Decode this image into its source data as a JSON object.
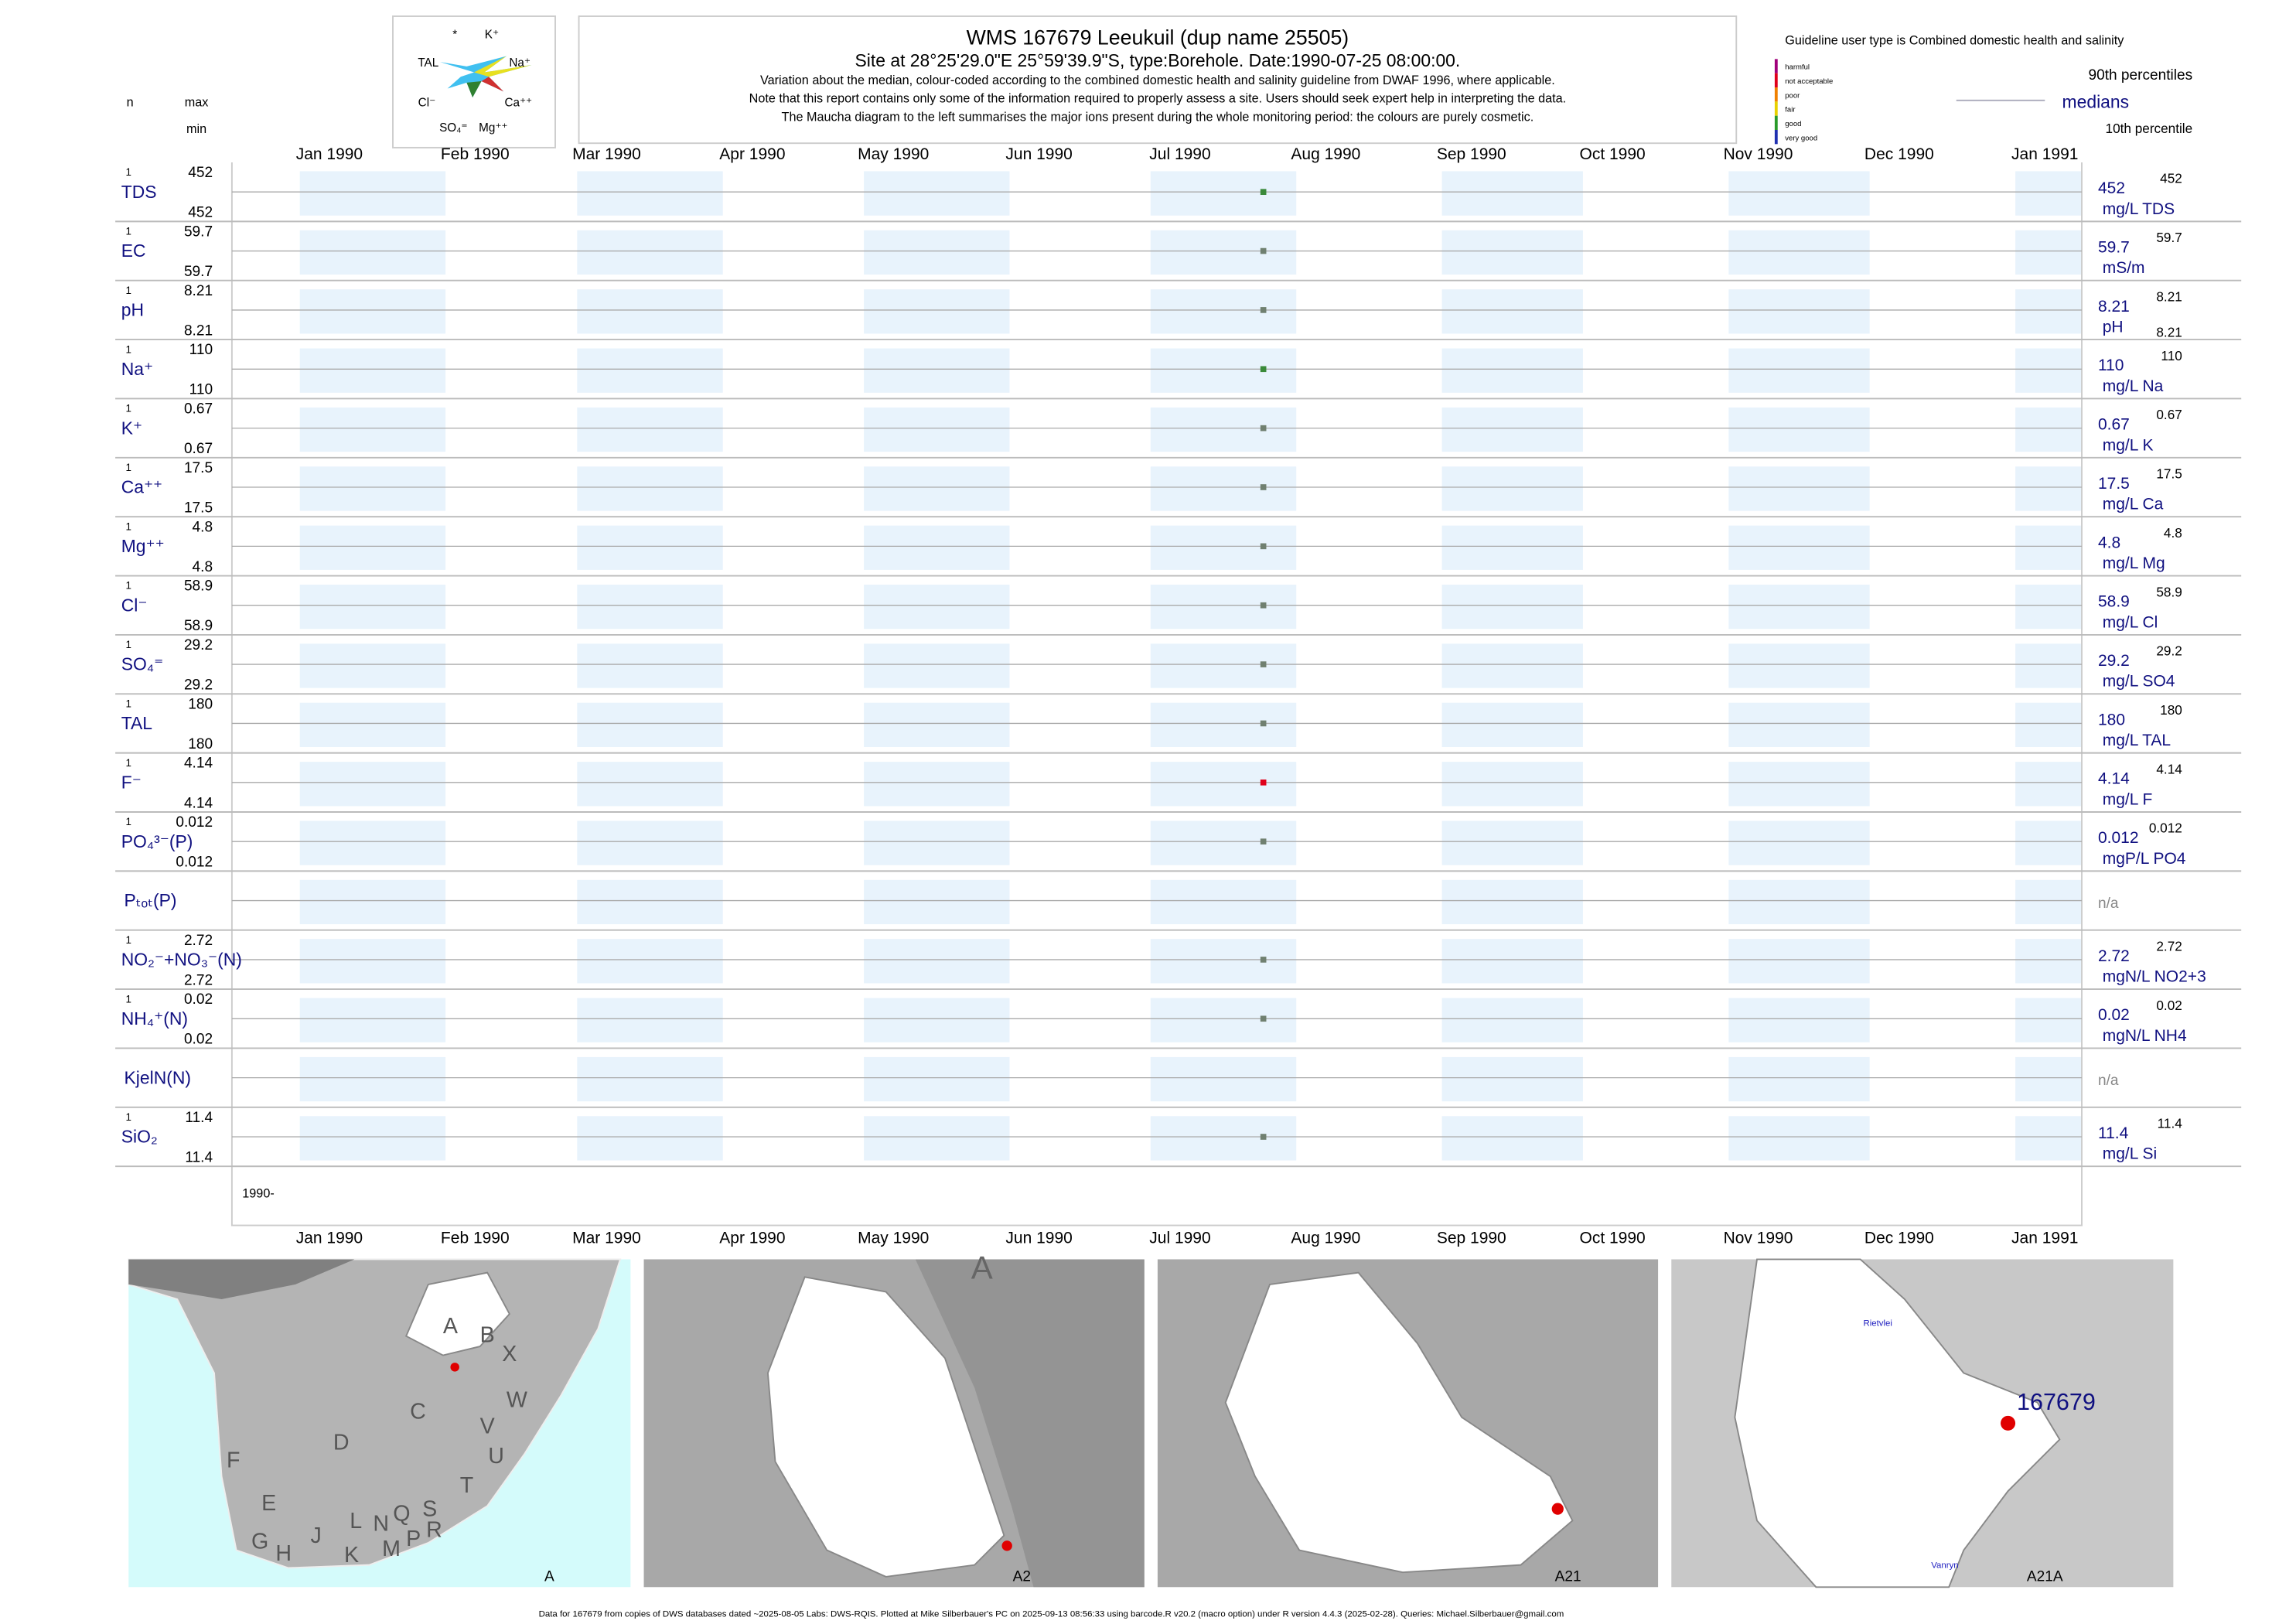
{
  "header": {
    "title": "WMS 167679  Leeukuil (dup name 25505)",
    "subtitle": "Site at 28°25'29.0\"E 25°59'39.9\"S, type:Borehole. Date:1990-07-25 08:00:00.",
    "notes": [
      "Variation about the median,  colour-coded according to the combined domestic health and salinity guideline from DWAF 1996, where applicable.",
      "Note that this report contains only some of the information required to properly assess a site. Users should seek expert help in interpreting the data.",
      "The Maucha diagram to the left summarises the major ions present during the whole monitoring period: the colours are purely cosmetic."
    ]
  },
  "maucha_labels": [
    "*",
    "K⁺",
    "TAL",
    "Na⁺",
    "Cl⁻",
    "Ca⁺⁺",
    "SO₄⁼",
    "Mg⁺⁺"
  ],
  "column_heads": {
    "n": "n",
    "max": "max",
    "min": "min"
  },
  "legend": {
    "title": "Guideline user type is Combined domestic health and salinity",
    "classes": [
      {
        "label": "harmful",
        "color": "#a0007a"
      },
      {
        "label": "not acceptable",
        "color": "#e0001a"
      },
      {
        "label": "poor",
        "color": "#f08000"
      },
      {
        "label": "fair",
        "color": "#e8d000"
      },
      {
        "label": "good",
        "color": "#2a9a2a"
      },
      {
        "label": "very good",
        "color": "#2030b0"
      }
    ],
    "p90": "90th percentiles",
    "medians": "medians",
    "p10": "10th percentile"
  },
  "months": [
    "Jan 1990",
    "Feb 1990",
    "Mar 1990",
    "Apr 1990",
    "May 1990",
    "Jun 1990",
    "Jul 1990",
    "Aug 1990",
    "Sep 1990",
    "Oct 1990",
    "Nov 1990",
    "Dec 1990",
    "Jan 1991"
  ],
  "year_label": "1990-",
  "rows": [
    {
      "label": "TDS",
      "n": 1,
      "max": 452,
      "min": 452,
      "median": 452,
      "unit": "mg/L TDS",
      "p90": 452,
      "color": "#3a8a3a"
    },
    {
      "label": "EC",
      "n": 1,
      "max": 59.7,
      "min": 59.7,
      "median": 59.7,
      "unit": "mS/m",
      "p90": 59.7,
      "color": "#708070"
    },
    {
      "label": "pH",
      "n": 1,
      "max": 8.21,
      "min": 8.21,
      "median": 8.21,
      "unit": "pH",
      "p90": 8.21,
      "p10": 8.21,
      "color": "#708070"
    },
    {
      "label": "Na⁺",
      "n": 1,
      "max": 110,
      "min": 110,
      "median": 110,
      "unit": "mg/L Na",
      "p90": 110,
      "color": "#3a8a3a"
    },
    {
      "label": "K⁺",
      "n": 1,
      "max": 0.67,
      "min": 0.67,
      "median": 0.67,
      "unit": "mg/L K",
      "p90": 0.67,
      "color": "#708070"
    },
    {
      "label": "Ca⁺⁺",
      "n": 1,
      "max": 17.5,
      "min": 17.5,
      "median": 17.5,
      "unit": "mg/L Ca",
      "p90": 17.5,
      "color": "#708070"
    },
    {
      "label": "Mg⁺⁺",
      "n": 1,
      "max": 4.8,
      "min": 4.8,
      "median": 4.8,
      "unit": "mg/L Mg",
      "p90": 4.8,
      "color": "#708070"
    },
    {
      "label": "Cl⁻",
      "n": 1,
      "max": 58.9,
      "min": 58.9,
      "median": 58.9,
      "unit": "mg/L Cl",
      "p90": 58.9,
      "color": "#708070"
    },
    {
      "label": "SO₄⁼",
      "n": 1,
      "max": 29.2,
      "min": 29.2,
      "median": 29.2,
      "unit": "mg/L SO4",
      "p90": 29.2,
      "color": "#708070"
    },
    {
      "label": "TAL",
      "n": 1,
      "max": 180,
      "min": 180,
      "median": 180,
      "unit": "mg/L TAL",
      "p90": 180,
      "color": "#708070"
    },
    {
      "label": "F⁻",
      "n": 1,
      "max": 4.14,
      "min": 4.14,
      "median": 4.14,
      "unit": "mg/L F",
      "p90": 4.14,
      "color": "#e0001a"
    },
    {
      "label": "PO₄³⁻(P)",
      "n": 1,
      "max": 0.012,
      "min": 0.012,
      "median": 0.012,
      "unit": "mgP/L PO4",
      "p90": 0.012,
      "color": "#708070"
    },
    {
      "label": "Pₜₒₜ(P)",
      "na": "n/a"
    },
    {
      "label": "NO₂⁻+NO₃⁻(N)",
      "n": 1,
      "max": 2.72,
      "min": 2.72,
      "median": 2.72,
      "unit": "mgN/L NO2+3",
      "p90": 2.72,
      "color": "#708070"
    },
    {
      "label": "NH₄⁺(N)",
      "n": 1,
      "max": 0.02,
      "min": 0.02,
      "median": 0.02,
      "unit": "mgN/L NH4",
      "p90": 0.02,
      "color": "#708070"
    },
    {
      "label": "KjelN(N)",
      "na": "n/a"
    },
    {
      "label": "SiO₂",
      "n": 1,
      "max": 11.4,
      "min": 11.4,
      "median": 11.4,
      "unit": "mg/L Si",
      "p90": 11.4,
      "color": "#708070"
    }
  ],
  "maps": {
    "captions": [
      "A",
      "A2",
      "A21",
      "A21A"
    ],
    "regions": [
      "A",
      "B",
      "X",
      "C",
      "W",
      "D",
      "V",
      "U",
      "F",
      "T",
      "E",
      "G",
      "H",
      "J",
      "L",
      "N",
      "Q",
      "S",
      "K",
      "M",
      "P",
      "R"
    ],
    "big_label": "A",
    "station": "167679",
    "places": [
      "Rietvlei",
      "Vanryn"
    ]
  },
  "footer": "Data for 167679 from copies of DWS databases dated ~2025-08-05 Labs: DWS-RQIS. Plotted at Mike Silberbauer's PC on 2025-09-13 08:56:33 using barcode.R v20.2 (macro option) under R version 4.4.3 (2025-02-28). Queries: Michael.Silberbauer@gmail.com"
}
